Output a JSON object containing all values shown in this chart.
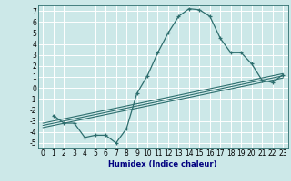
{
  "title": "",
  "xlabel": "Humidex (Indice chaleur)",
  "bg_color": "#cce8e8",
  "grid_color": "#ffffff",
  "line_color": "#2d6e6e",
  "xlim": [
    -0.5,
    23.5
  ],
  "ylim": [
    -5.5,
    7.5
  ],
  "xticks": [
    0,
    1,
    2,
    3,
    4,
    5,
    6,
    7,
    8,
    9,
    10,
    11,
    12,
    13,
    14,
    15,
    16,
    17,
    18,
    19,
    20,
    21,
    22,
    23
  ],
  "yticks": [
    -5,
    -4,
    -3,
    -2,
    -1,
    0,
    1,
    2,
    3,
    4,
    5,
    6,
    7
  ],
  "main_curve": {
    "x": [
      1,
      2,
      3,
      4,
      5,
      6,
      7,
      8,
      9,
      10,
      11,
      12,
      13,
      14,
      15,
      16,
      17,
      18,
      19,
      20,
      21,
      22,
      23
    ],
    "y": [
      -2.5,
      -3.2,
      -3.2,
      -4.5,
      -4.3,
      -4.3,
      -5.0,
      -3.7,
      -0.5,
      1.1,
      3.2,
      5.0,
      6.5,
      7.2,
      7.1,
      6.5,
      4.5,
      3.2,
      3.2,
      2.2,
      0.7,
      0.5,
      1.2
    ]
  },
  "straight_lines": [
    {
      "x": [
        0,
        23
      ],
      "y": [
        -3.2,
        1.3
      ]
    },
    {
      "x": [
        0,
        23
      ],
      "y": [
        -3.4,
        1.1
      ]
    },
    {
      "x": [
        0,
        23
      ],
      "y": [
        -3.6,
        0.9
      ]
    }
  ],
  "xlabel_fontsize": 6,
  "xlabel_color": "#000080",
  "tick_fontsize": 5.5,
  "figsize": [
    3.2,
    2.0
  ],
  "dpi": 100
}
